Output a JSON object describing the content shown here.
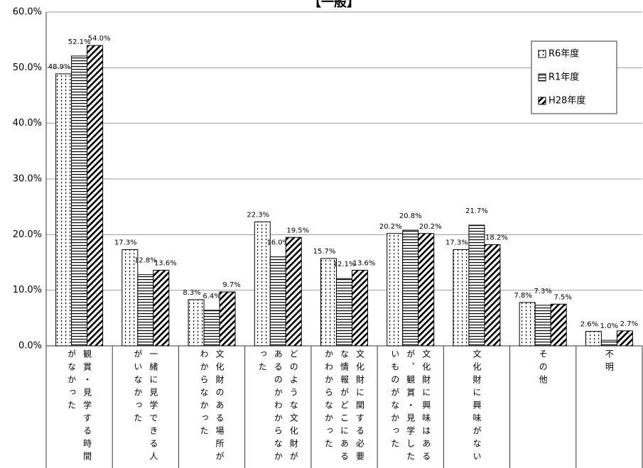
{
  "chart_data": {
    "type": "bar",
    "title": "【一般】",
    "categories": [
      "観賞・見学する時間がなかった",
      "一緒に見学できる人がいなかった",
      "文化財のある場所がわからなかった",
      "どのような文化財があるのかわからなかった",
      "文化財に関する必要な情報がどこにあるかわからなかった",
      "文化財に興味はあるが、観賞・見学したいものがなかった",
      "文化財に興味がない",
      "その他",
      "不明"
    ],
    "series": [
      {
        "name": "R6年度",
        "color": "#000000",
        "pattern": "dots",
        "values": [
          48.9,
          17.3,
          8.3,
          22.3,
          15.7,
          20.2,
          17.3,
          7.8,
          2.6
        ],
        "value_labels": [
          "48.9%",
          "17.3%",
          "8.3%",
          "22.3%",
          "15.7%",
          "20.2%",
          "17.3%",
          "7.8%",
          "2.6%"
        ]
      },
      {
        "name": "R1年度",
        "color": "#000000",
        "pattern": "horizontal",
        "values": [
          52.1,
          12.8,
          6.4,
          16.0,
          12.1,
          20.8,
          21.7,
          7.3,
          1.0
        ],
        "value_labels": [
          "52.1%",
          "12.8%",
          "6.4%",
          "16.0%",
          "12.1%",
          "20.8%",
          "21.7%",
          "7.3%",
          "1.0%"
        ]
      },
      {
        "name": "H28年度",
        "color": "#000000",
        "pattern": "diagonal",
        "values": [
          54.0,
          13.6,
          9.7,
          19.5,
          13.6,
          20.2,
          18.2,
          7.5,
          2.7
        ],
        "value_labels": [
          "54.0%",
          "13.6%",
          "9.7%",
          "19.5%",
          "13.6%",
          "20.2%",
          "18.2%",
          "7.5%",
          "2.7%"
        ]
      }
    ],
    "ylim": [
      0,
      60
    ],
    "yticks": [
      {
        "value": 0,
        "label": "0.0%"
      },
      {
        "value": 10,
        "label": "10.0%"
      },
      {
        "value": 20,
        "label": "20.0%"
      },
      {
        "value": 30,
        "label": "30.0%"
      },
      {
        "value": 40,
        "label": "40.0%"
      },
      {
        "value": 50,
        "label": "50.0%"
      },
      {
        "value": 60,
        "label": "60.0%"
      }
    ],
    "grid": true,
    "legend": "upper right"
  }
}
